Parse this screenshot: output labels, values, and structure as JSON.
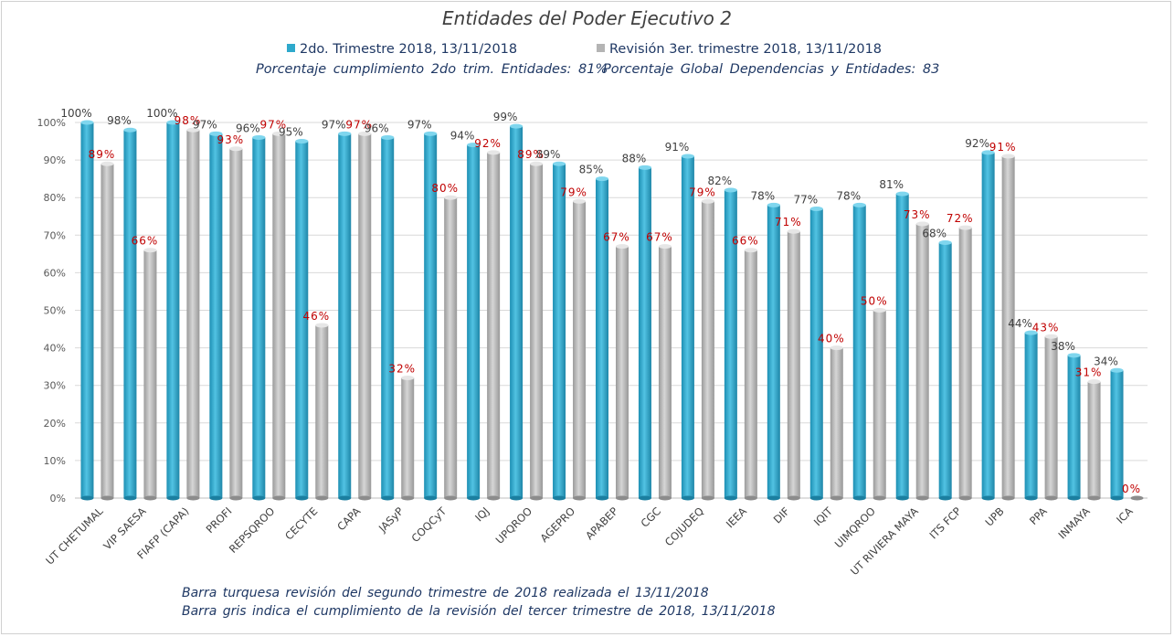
{
  "chart_data": {
    "type": "bar",
    "title": "Entidades del Poder Ejecutivo 2",
    "categories": [
      "UT CHETUMAL",
      "VIP SAESA",
      "FIAFP (CAPA)",
      "PROFI",
      "REPSQROO",
      "CECYTE",
      "CAPA",
      "JASyP",
      "COQCyT",
      "IQJ",
      "UPQROO",
      "AGEPRO",
      "APABEP",
      "CGC",
      "COJUDEQ",
      "IEEA",
      "DIF",
      "IQIT",
      "UIMQROO",
      "UT RIVIERA MAYA",
      "ITS FCP",
      "UPB",
      "PPA",
      "INMAYA",
      "ICA"
    ],
    "series": [
      {
        "name": "2do. Trimestre 2018, 13/11/2018",
        "color": "#2ea9cc",
        "values": [
          100,
          98,
          100,
          97,
          96,
          95,
          97,
          96,
          97,
          94,
          99,
          89,
          85,
          88,
          91,
          82,
          78,
          77,
          78,
          81,
          68,
          92,
          44,
          38,
          34
        ]
      },
      {
        "name": "Revisión 3er. trimestre 2018, 13/11/2018",
        "color": "#b4b4b4",
        "values": [
          89,
          66,
          98,
          93,
          97,
          46,
          97,
          32,
          80,
          92,
          89,
          79,
          67,
          67,
          79,
          66,
          71,
          40,
          50,
          73,
          72,
          91,
          43,
          31,
          0
        ]
      }
    ],
    "ylim": [
      0,
      100
    ],
    "yticks": [
      "0%",
      "10%",
      "20%",
      "30%",
      "40%",
      "50%",
      "60%",
      "70%",
      "80%",
      "90%",
      "100%"
    ],
    "value_suffix": "%",
    "label_colors": [
      "#404040",
      "#c00000"
    ],
    "grid": true,
    "legend_position": "top"
  },
  "subtitle": {
    "entidades": "Porcentaje cumplimiento 2do trim. Entidades: 81%",
    "global": "Porcentaje Global Dependencias y Entidades: 83"
  },
  "notes": [
    "Barra turquesa revisión del segundo trimestre de 2018 realizada el 13/11/2018",
    "Barra gris indica el cumplimiento de la revisión del tercer trimestre de 2018, 13/11/2018"
  ]
}
